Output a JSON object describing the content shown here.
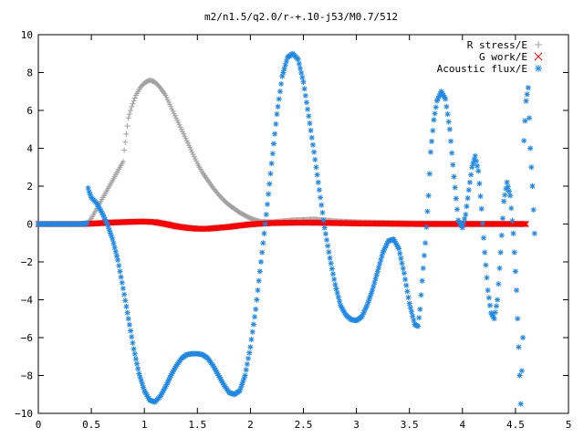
{
  "chart_data": {
    "type": "scatter",
    "title": "m2/n1.5/q2.0/r-+.10-j53/M0.7/512",
    "xlabel": "",
    "ylabel": "",
    "xlim": [
      0,
      5
    ],
    "ylim": [
      -10,
      10
    ],
    "xticks": [
      0,
      0.5,
      1,
      1.5,
      2,
      2.5,
      3,
      3.5,
      4,
      4.5,
      5
    ],
    "xtick_labels": [
      "0",
      "0.5",
      "1",
      "1.5",
      "2",
      "2.5",
      "3",
      "3.5",
      "4",
      "4.5",
      "5"
    ],
    "yticks": [
      -10,
      -8,
      -6,
      -4,
      -2,
      0,
      2,
      4,
      6,
      8,
      10
    ],
    "ytick_labels": [
      "−10",
      "−8",
      "−6",
      "−4",
      "−2",
      "0",
      "2",
      "4",
      "6",
      "8",
      "10"
    ],
    "grid": false,
    "legend_position": "top-right",
    "series": [
      {
        "name": "R stress/E",
        "marker": "plus",
        "color": "#a0a0a0",
        "points": [
          [
            0.0,
            0.0
          ],
          [
            0.1,
            0.0
          ],
          [
            0.2,
            0.0
          ],
          [
            0.3,
            0.0
          ],
          [
            0.4,
            0.0
          ],
          [
            0.47,
            0.05
          ],
          [
            0.5,
            0.3
          ],
          [
            0.55,
            0.8
          ],
          [
            0.6,
            1.3
          ],
          [
            0.65,
            1.8
          ],
          [
            0.7,
            2.3
          ],
          [
            0.75,
            2.8
          ],
          [
            0.8,
            3.3
          ],
          [
            0.81,
            3.9
          ],
          [
            0.85,
            5.6
          ],
          [
            0.88,
            6.2
          ],
          [
            0.92,
            6.8
          ],
          [
            0.96,
            7.2
          ],
          [
            1.0,
            7.45
          ],
          [
            1.05,
            7.6
          ],
          [
            1.1,
            7.5
          ],
          [
            1.15,
            7.2
          ],
          [
            1.2,
            6.8
          ],
          [
            1.25,
            6.2
          ],
          [
            1.3,
            5.6
          ],
          [
            1.35,
            5.0
          ],
          [
            1.4,
            4.4
          ],
          [
            1.45,
            3.8
          ],
          [
            1.5,
            3.2
          ],
          [
            1.55,
            2.7
          ],
          [
            1.6,
            2.3
          ],
          [
            1.65,
            1.9
          ],
          [
            1.7,
            1.55
          ],
          [
            1.75,
            1.25
          ],
          [
            1.8,
            1.0
          ],
          [
            1.85,
            0.8
          ],
          [
            1.9,
            0.6
          ],
          [
            1.95,
            0.45
          ],
          [
            2.0,
            0.3
          ],
          [
            2.05,
            0.2
          ],
          [
            2.1,
            0.12
          ],
          [
            2.2,
            0.1
          ],
          [
            2.3,
            0.15
          ],
          [
            2.4,
            0.2
          ],
          [
            2.5,
            0.22
          ],
          [
            2.6,
            0.25
          ],
          [
            2.7,
            0.2
          ],
          [
            2.8,
            0.15
          ],
          [
            3.0,
            0.1
          ],
          [
            3.2,
            0.08
          ],
          [
            3.4,
            0.06
          ],
          [
            3.6,
            0.04
          ],
          [
            3.8,
            0.03
          ],
          [
            4.0,
            0.02
          ],
          [
            4.2,
            0.02
          ],
          [
            4.4,
            0.01
          ],
          [
            4.6,
            0.01
          ]
        ]
      },
      {
        "name": "G work/E",
        "marker": "cross",
        "color": "#ff0000",
        "points": [
          [
            0.0,
            0.0
          ],
          [
            0.1,
            0.0
          ],
          [
            0.2,
            0.0
          ],
          [
            0.3,
            0.0
          ],
          [
            0.4,
            0.0
          ],
          [
            0.5,
            0.02
          ],
          [
            0.6,
            0.05
          ],
          [
            0.7,
            0.08
          ],
          [
            0.8,
            0.1
          ],
          [
            0.9,
            0.12
          ],
          [
            1.0,
            0.13
          ],
          [
            1.1,
            0.1
          ],
          [
            1.2,
            0.0
          ],
          [
            1.3,
            -0.12
          ],
          [
            1.4,
            -0.2
          ],
          [
            1.5,
            -0.25
          ],
          [
            1.6,
            -0.25
          ],
          [
            1.7,
            -0.2
          ],
          [
            1.8,
            -0.15
          ],
          [
            1.9,
            -0.08
          ],
          [
            2.0,
            -0.02
          ],
          [
            2.1,
            0.02
          ],
          [
            2.2,
            0.05
          ],
          [
            2.4,
            0.07
          ],
          [
            2.6,
            0.07
          ],
          [
            2.8,
            0.05
          ],
          [
            3.0,
            0.03
          ],
          [
            3.2,
            0.02
          ],
          [
            3.4,
            0.01
          ],
          [
            3.6,
            0.0
          ],
          [
            3.8,
            0.0
          ],
          [
            4.0,
            0.0
          ],
          [
            4.2,
            0.0
          ],
          [
            4.4,
            0.0
          ],
          [
            4.6,
            0.0
          ]
        ]
      },
      {
        "name": "Acoustic flux/E",
        "marker": "star",
        "color": "#1e88e5",
        "points": [
          [
            0.0,
            0.0
          ],
          [
            0.1,
            0.0
          ],
          [
            0.2,
            0.0
          ],
          [
            0.3,
            0.0
          ],
          [
            0.4,
            0.0
          ],
          [
            0.46,
            0.05
          ],
          [
            0.47,
            1.9
          ],
          [
            0.48,
            1.7
          ],
          [
            0.5,
            1.4
          ],
          [
            0.55,
            1.1
          ],
          [
            0.6,
            0.6
          ],
          [
            0.65,
            0.0
          ],
          [
            0.7,
            -0.8
          ],
          [
            0.75,
            -1.9
          ],
          [
            0.8,
            -3.4
          ],
          [
            0.85,
            -5.0
          ],
          [
            0.9,
            -6.6
          ],
          [
            0.95,
            -7.9
          ],
          [
            1.0,
            -8.8
          ],
          [
            1.05,
            -9.3
          ],
          [
            1.1,
            -9.4
          ],
          [
            1.15,
            -9.1
          ],
          [
            1.2,
            -8.6
          ],
          [
            1.25,
            -8.0
          ],
          [
            1.3,
            -7.5
          ],
          [
            1.35,
            -7.1
          ],
          [
            1.4,
            -6.9
          ],
          [
            1.45,
            -6.85
          ],
          [
            1.5,
            -6.85
          ],
          [
            1.55,
            -6.9
          ],
          [
            1.6,
            -7.1
          ],
          [
            1.65,
            -7.5
          ],
          [
            1.7,
            -8.0
          ],
          [
            1.75,
            -8.5
          ],
          [
            1.8,
            -8.9
          ],
          [
            1.85,
            -9.0
          ],
          [
            1.9,
            -8.8
          ],
          [
            1.95,
            -8.0
          ],
          [
            2.0,
            -6.5
          ],
          [
            2.05,
            -4.5
          ],
          [
            2.1,
            -2.0
          ],
          [
            2.15,
            0.5
          ],
          [
            2.2,
            3.2
          ],
          [
            2.25,
            5.8
          ],
          [
            2.3,
            7.8
          ],
          [
            2.35,
            8.8
          ],
          [
            2.4,
            9.0
          ],
          [
            2.45,
            8.7
          ],
          [
            2.5,
            7.5
          ],
          [
            2.55,
            5.7
          ],
          [
            2.6,
            3.8
          ],
          [
            2.65,
            1.8
          ],
          [
            2.7,
            -0.2
          ],
          [
            2.75,
            -1.8
          ],
          [
            2.8,
            -3.2
          ],
          [
            2.85,
            -4.3
          ],
          [
            2.9,
            -4.8
          ],
          [
            2.95,
            -5.05
          ],
          [
            3.0,
            -5.1
          ],
          [
            3.05,
            -4.9
          ],
          [
            3.1,
            -4.3
          ],
          [
            3.15,
            -3.5
          ],
          [
            3.2,
            -2.5
          ],
          [
            3.25,
            -1.5
          ],
          [
            3.3,
            -0.9
          ],
          [
            3.35,
            -0.8
          ],
          [
            3.4,
            -1.3
          ],
          [
            3.45,
            -2.6
          ],
          [
            3.5,
            -4.2
          ],
          [
            3.55,
            -5.3
          ],
          [
            3.58,
            -5.4
          ],
          [
            3.6,
            -4.5
          ],
          [
            3.62,
            -3.0
          ],
          [
            3.65,
            -1.0
          ],
          [
            3.68,
            1.5
          ],
          [
            3.7,
            3.8
          ],
          [
            3.73,
            5.5
          ],
          [
            3.76,
            6.5
          ],
          [
            3.8,
            7.0
          ],
          [
            3.84,
            6.6
          ],
          [
            3.88,
            5.0
          ],
          [
            3.92,
            2.5
          ],
          [
            3.96,
            0.2
          ],
          [
            4.0,
            -0.2
          ],
          [
            4.03,
            0.5
          ],
          [
            4.06,
            1.8
          ],
          [
            4.09,
            3.0
          ],
          [
            4.12,
            3.6
          ],
          [
            4.15,
            2.8
          ],
          [
            4.18,
            0.8
          ],
          [
            4.21,
            -1.5
          ],
          [
            4.24,
            -3.5
          ],
          [
            4.27,
            -4.7
          ],
          [
            4.3,
            -5.0
          ],
          [
            4.33,
            -4.0
          ],
          [
            4.36,
            -1.5
          ],
          [
            4.39,
            1.2
          ],
          [
            4.42,
            2.2
          ],
          [
            4.45,
            1.5
          ],
          [
            4.48,
            -0.5
          ],
          [
            4.51,
            -3.5
          ],
          [
            4.53,
            -6.5
          ],
          [
            4.55,
            -9.5
          ],
          [
            4.57,
            -6.0
          ],
          [
            4.58,
            4.4
          ],
          [
            4.6,
            6.5
          ],
          [
            4.62,
            7.2
          ],
          [
            4.64,
            4.0
          ],
          [
            4.66,
            2.0
          ],
          [
            4.68,
            -0.5
          ]
        ]
      }
    ]
  }
}
